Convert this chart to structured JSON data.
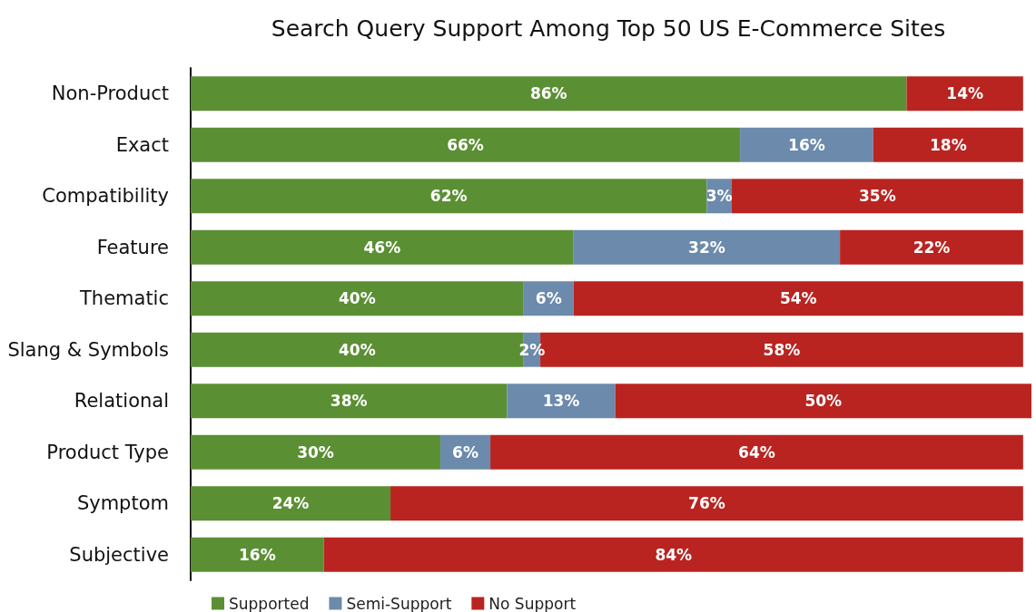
{
  "chart_data": {
    "type": "bar",
    "title": "Search Query Support Among Top 50 US E-Commerce Sites",
    "orientation": "horizontal",
    "stacked": true,
    "legend": "bottom left",
    "categories": [
      "Non-Product",
      "Exact",
      "Compatibility",
      "Feature",
      "Thematic",
      "Slang & Symbols",
      "Relational",
      "Product Type",
      "Symptom",
      "Subjective"
    ],
    "series": [
      {
        "name": "Supported",
        "color": "#5b8f34",
        "values": [
          86,
          66,
          62,
          46,
          40,
          40,
          38,
          30,
          24,
          16
        ],
        "value_labels": [
          "86%",
          "66%",
          "62%",
          "46%",
          "40%",
          "40%",
          "38%",
          "30%",
          "24%",
          "16%"
        ]
      },
      {
        "name": "Semi-Support",
        "color": "#6b8aac",
        "values": [
          null,
          16,
          3,
          32,
          6,
          2,
          13,
          6,
          null,
          null
        ],
        "value_labels": [
          null,
          "16%",
          "3%",
          "32%",
          "6%",
          "2%",
          "13%",
          "6%",
          null,
          null
        ]
      },
      {
        "name": "No Support",
        "color": "#b92420",
        "values": [
          14,
          18,
          35,
          22,
          54,
          58,
          50,
          64,
          76,
          84
        ],
        "value_labels": [
          "14%",
          "18%",
          "35%",
          "22%",
          "54%",
          "58%",
          "50%",
          "64%",
          "76%",
          "84%"
        ]
      }
    ]
  }
}
